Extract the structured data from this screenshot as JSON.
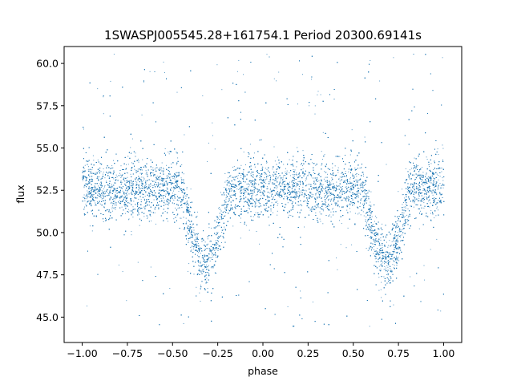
{
  "chart_data": {
    "type": "scatter",
    "title": "1SWASPJ005545.28+161754.1 Period 20300.69141s",
    "xlabel": "phase",
    "ylabel": "flux",
    "xlim": [
      -1.1,
      1.1
    ],
    "ylim": [
      43.5,
      61.0
    ],
    "x_ticks": [
      -1.0,
      -0.75,
      -0.5,
      -0.25,
      0.0,
      0.25,
      0.5,
      0.75,
      1.0
    ],
    "x_tick_labels": [
      "−1.00",
      "−0.75",
      "−0.50",
      "−0.25",
      "0.00",
      "0.25",
      "0.50",
      "0.75",
      "1.00"
    ],
    "y_ticks": [
      45.0,
      47.5,
      50.0,
      52.5,
      55.0,
      57.5,
      60.0
    ],
    "y_tick_labels": [
      "45.0",
      "47.5",
      "50.0",
      "52.5",
      "55.0",
      "57.5",
      "60.0"
    ],
    "grid": false,
    "legend": "none",
    "marker_color": "#1f77b4",
    "data_range": {
      "x": [
        -1.0,
        1.0
      ],
      "flux_min": 44.3,
      "flux_max": 60.6
    },
    "baseline_flux": 52.6,
    "baseline_spread": [
      50.8,
      54.4
    ],
    "eclipses": [
      {
        "phase_center": -0.32,
        "half_width": 0.13,
        "min_flux": 48.2
      },
      {
        "phase_center": 0.68,
        "half_width": 0.13,
        "min_flux": 48.2
      }
    ]
  }
}
